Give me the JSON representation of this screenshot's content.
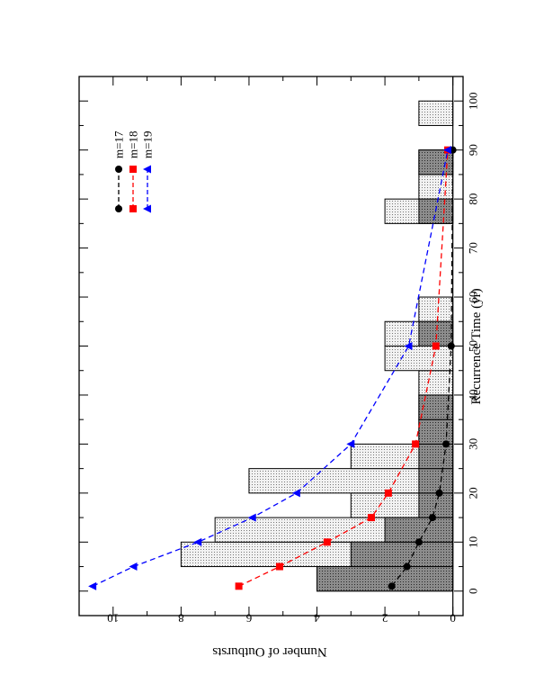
{
  "chart_data": {
    "type": "bar",
    "orientation": "rotated-90",
    "title": "",
    "xlabel": "Recurrence Time (yr)",
    "ylabel": "Number of Outbursts",
    "xlim": [
      -5,
      105
    ],
    "ylim": [
      -0.3,
      11
    ],
    "xticks": [
      "0",
      "10",
      "20",
      "30",
      "40",
      "50",
      "60",
      "70",
      "80",
      "90",
      "100"
    ],
    "yticks": [
      "0",
      "2",
      "4",
      "6",
      "8",
      "10"
    ],
    "grid": false,
    "histograms": [
      {
        "fill": "light-dotted",
        "bins": [
          {
            "x0": 0,
            "x1": 5,
            "value": 4
          },
          {
            "x0": 5,
            "x1": 10,
            "value": 8
          },
          {
            "x0": 10,
            "x1": 15,
            "value": 7
          },
          {
            "x0": 15,
            "x1": 20,
            "value": 3
          },
          {
            "x0": 20,
            "x1": 25,
            "value": 6
          },
          {
            "x0": 25,
            "x1": 30,
            "value": 3
          },
          {
            "x0": 30,
            "x1": 35,
            "value": 1
          },
          {
            "x0": 35,
            "x1": 40,
            "value": 1
          },
          {
            "x0": 40,
            "x1": 45,
            "value": 1
          },
          {
            "x0": 45,
            "x1": 50,
            "value": 2
          },
          {
            "x0": 50,
            "x1": 55,
            "value": 2
          },
          {
            "x0": 55,
            "x1": 60,
            "value": 1
          },
          {
            "x0": 75,
            "x1": 80,
            "value": 2
          },
          {
            "x0": 80,
            "x1": 85,
            "value": 1
          },
          {
            "x0": 85,
            "x1": 90,
            "value": 1
          },
          {
            "x0": 95,
            "x1": 100,
            "value": 1
          }
        ]
      },
      {
        "fill": "dark-dotted",
        "bins": [
          {
            "x0": 0,
            "x1": 5,
            "value": 4
          },
          {
            "x0": 5,
            "x1": 10,
            "value": 3
          },
          {
            "x0": 10,
            "x1": 15,
            "value": 2
          },
          {
            "x0": 15,
            "x1": 20,
            "value": 1
          },
          {
            "x0": 20,
            "x1": 25,
            "value": 1
          },
          {
            "x0": 25,
            "x1": 30,
            "value": 1
          },
          {
            "x0": 30,
            "x1": 35,
            "value": 1
          },
          {
            "x0": 35,
            "x1": 40,
            "value": 1
          },
          {
            "x0": 50,
            "x1": 55,
            "value": 1
          },
          {
            "x0": 75,
            "x1": 80,
            "value": 1
          },
          {
            "x0": 85,
            "x1": 90,
            "value": 1
          }
        ]
      }
    ],
    "series": [
      {
        "name": "m=17",
        "color": "#000000",
        "marker": "circle",
        "x": [
          1,
          5,
          10,
          15,
          20,
          30,
          50,
          90
        ],
        "y": [
          1.8,
          1.35,
          1.0,
          0.6,
          0.4,
          0.2,
          0.05,
          0.0
        ]
      },
      {
        "name": "m=18",
        "color": "#ff0000",
        "marker": "square",
        "x": [
          1,
          5,
          10,
          15,
          20,
          30,
          50,
          90
        ],
        "y": [
          6.3,
          5.1,
          3.7,
          2.4,
          1.9,
          1.1,
          0.5,
          0.15
        ]
      },
      {
        "name": "m=19",
        "color": "#0000ff",
        "marker": "triangle",
        "x": [
          1,
          5,
          10,
          15,
          20,
          30,
          50,
          90
        ],
        "y": [
          10.6,
          9.4,
          7.5,
          5.9,
          4.6,
          3.0,
          1.3,
          0.15
        ]
      }
    ],
    "legend": {
      "position": "upper-right",
      "entries": [
        "m=17",
        "m=18",
        "m=19"
      ]
    }
  }
}
